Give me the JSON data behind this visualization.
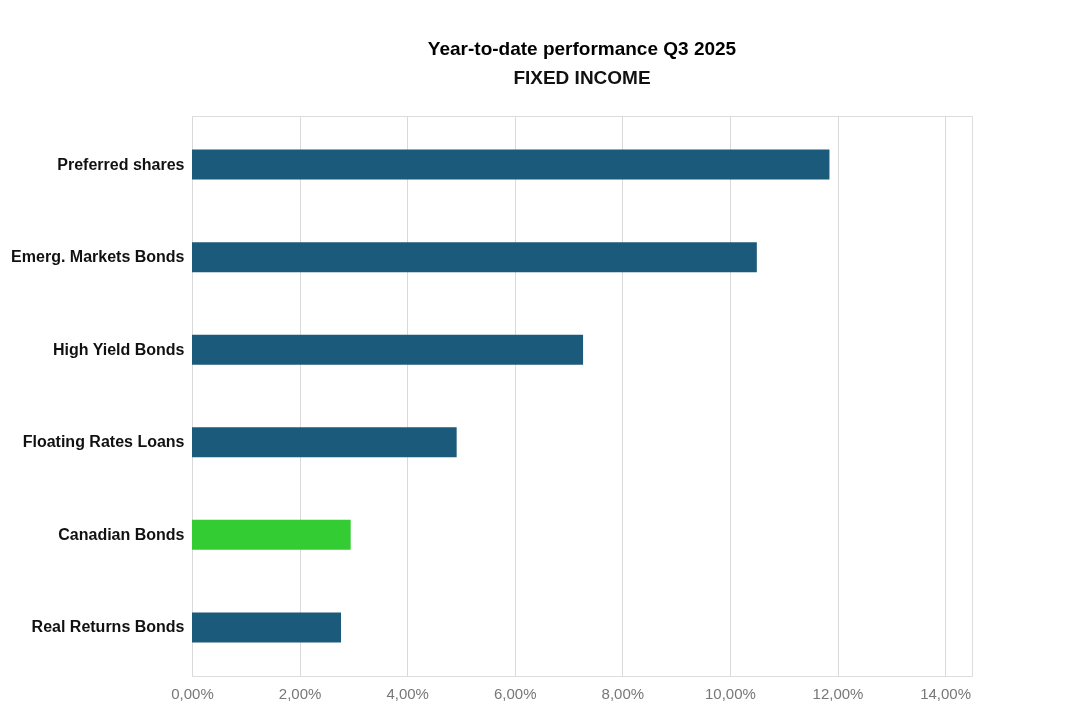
{
  "chart_data": {
    "type": "bar",
    "orientation": "horizontal",
    "title": "Year-to-date performance Q3 2025",
    "subtitle": "FIXED INCOME",
    "categories": [
      "Preferred shares",
      "Emerg. Markets Bonds",
      "High Yield Bonds",
      "Floating Rates Loans",
      "Canadian Bonds",
      "Real Returns Bonds"
    ],
    "values": [
      11.85,
      10.5,
      7.27,
      4.92,
      2.95,
      2.77
    ],
    "colors": [
      "#1b5a7a",
      "#1b5a7a",
      "#1b5a7a",
      "#1b5a7a",
      "#33cc33",
      "#1b5a7a"
    ],
    "xlim": [
      0,
      14.5
    ],
    "xticks": [
      {
        "value": 0,
        "label": "0,00%"
      },
      {
        "value": 2,
        "label": "2,00%"
      },
      {
        "value": 4,
        "label": "4,00%"
      },
      {
        "value": 6,
        "label": "6,00%"
      },
      {
        "value": 8,
        "label": "8,00%"
      },
      {
        "value": 10,
        "label": "10,00%"
      },
      {
        "value": 12,
        "label": "12,00%"
      },
      {
        "value": 14,
        "label": "14,00%"
      }
    ],
    "grid": "x",
    "legend": false
  }
}
